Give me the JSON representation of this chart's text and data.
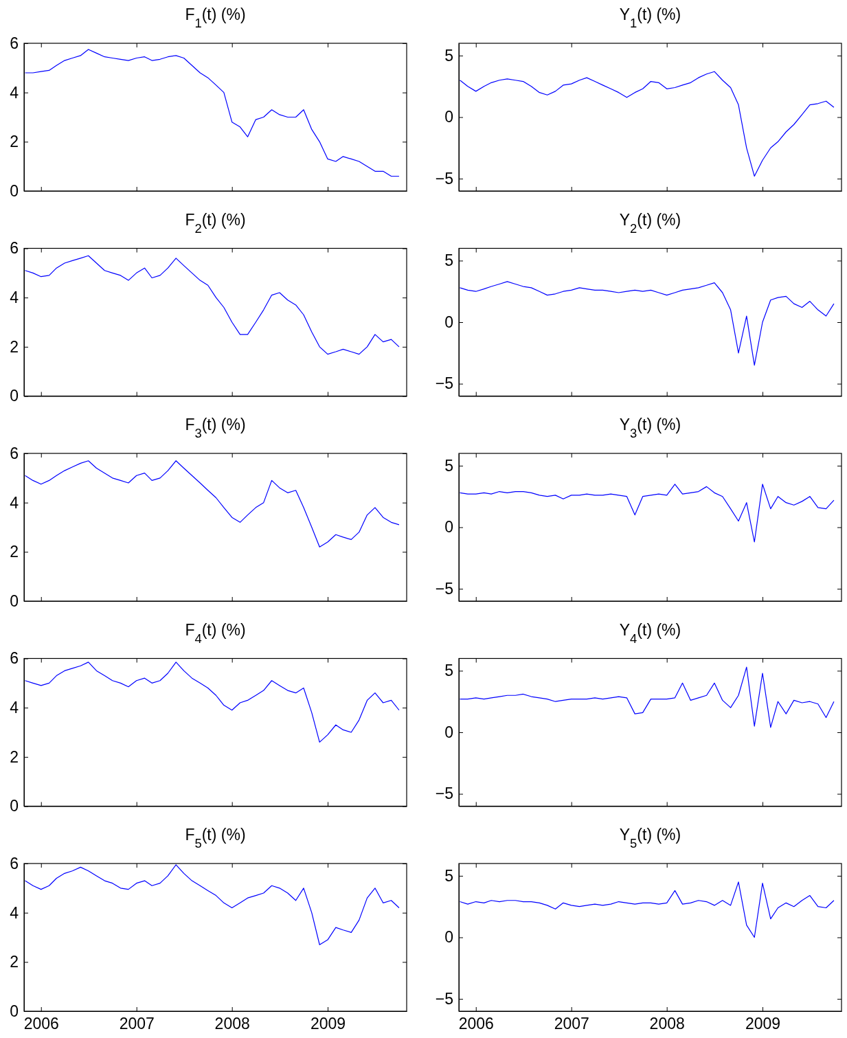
{
  "chart_data": [
    {
      "type": "line",
      "title": "F$_{1}$(t) (%)",
      "xlim": [
        "2005-10-28",
        "2009-10-30"
      ],
      "xticks": [
        "2006",
        "2007",
        "2008",
        "2009"
      ],
      "ylim": [
        0,
        6
      ],
      "yticks": [
        0,
        2,
        4,
        6
      ],
      "tick_labels": "y",
      "x": [
        "2005-11",
        "2005-12",
        "2006-01",
        "2006-02",
        "2006-03",
        "2006-04",
        "2006-05",
        "2006-06",
        "2006-07",
        "2006-08",
        "2006-09",
        "2006-10",
        "2006-11",
        "2006-12",
        "2007-01",
        "2007-02",
        "2007-03",
        "2007-04",
        "2007-05",
        "2007-06",
        "2007-07",
        "2007-08",
        "2007-09",
        "2007-10",
        "2007-11",
        "2007-12",
        "2008-01",
        "2008-02",
        "2008-03",
        "2008-04",
        "2008-05",
        "2008-06",
        "2008-07",
        "2008-08",
        "2008-09",
        "2008-10",
        "2008-11",
        "2008-12",
        "2009-01",
        "2009-02",
        "2009-03",
        "2009-04",
        "2009-05",
        "2009-06",
        "2009-07",
        "2009-08",
        "2009-09",
        "2009-10"
      ],
      "series": [
        {
          "color": "#0000ff",
          "values": [
            4.8,
            4.8,
            4.85,
            4.9,
            5.1,
            5.3,
            5.4,
            5.5,
            5.75,
            5.6,
            5.45,
            5.4,
            5.35,
            5.3,
            5.4,
            5.45,
            5.3,
            5.35,
            5.45,
            5.5,
            5.4,
            5.1,
            4.8,
            4.6,
            4.3,
            4.0,
            2.8,
            2.6,
            2.2,
            2.9,
            3.0,
            3.3,
            3.1,
            3.0,
            3.0,
            3.3,
            2.5,
            2.0,
            1.3,
            1.2,
            1.4,
            1.3,
            1.2,
            1.0,
            0.8,
            0.8,
            0.6,
            0.6
          ]
        }
      ]
    },
    {
      "type": "line",
      "title": "Y$_{1}$(t) (%)",
      "xlim": [
        "2005-10-28",
        "2009-10-30"
      ],
      "xticks": [
        "2006",
        "2007",
        "2008",
        "2009"
      ],
      "ylim": [
        -6,
        6
      ],
      "yticks": [
        -5,
        0,
        5
      ],
      "tick_labels": "y",
      "x": [
        "2005-11",
        "2005-12",
        "2006-01",
        "2006-02",
        "2006-03",
        "2006-04",
        "2006-05",
        "2006-06",
        "2006-07",
        "2006-08",
        "2006-09",
        "2006-10",
        "2006-11",
        "2006-12",
        "2007-01",
        "2007-02",
        "2007-03",
        "2007-04",
        "2007-05",
        "2007-06",
        "2007-07",
        "2007-08",
        "2007-09",
        "2007-10",
        "2007-11",
        "2007-12",
        "2008-01",
        "2008-02",
        "2008-03",
        "2008-04",
        "2008-05",
        "2008-06",
        "2008-07",
        "2008-08",
        "2008-09",
        "2008-10",
        "2008-11",
        "2008-12",
        "2009-01",
        "2009-02",
        "2009-03",
        "2009-04",
        "2009-05",
        "2009-06",
        "2009-07",
        "2009-08",
        "2009-09",
        "2009-10"
      ],
      "series": [
        {
          "color": "#0000ff",
          "values": [
            3.0,
            2.5,
            2.1,
            2.5,
            2.8,
            3.0,
            3.1,
            3.0,
            2.9,
            2.5,
            2.0,
            1.8,
            2.1,
            2.6,
            2.7,
            3.0,
            3.2,
            2.9,
            2.6,
            2.3,
            2.0,
            1.6,
            2.0,
            2.3,
            2.9,
            2.8,
            2.3,
            2.4,
            2.6,
            2.8,
            3.2,
            3.5,
            3.7,
            3.0,
            2.4,
            1.0,
            -2.5,
            -4.8,
            -3.5,
            -2.5,
            -2.0,
            -1.2,
            -0.6,
            0.2,
            1.0,
            1.1,
            1.3,
            0.8
          ]
        }
      ]
    },
    {
      "type": "line",
      "title": "F$_{2}$(t) (%)",
      "xlim": [
        "2005-10-28",
        "2009-10-30"
      ],
      "xticks": [
        "2006",
        "2007",
        "2008",
        "2009"
      ],
      "ylim": [
        0,
        6
      ],
      "yticks": [
        0,
        2,
        4,
        6
      ],
      "tick_labels": "y",
      "x": [
        "2005-11",
        "2005-12",
        "2006-01",
        "2006-02",
        "2006-03",
        "2006-04",
        "2006-05",
        "2006-06",
        "2006-07",
        "2006-08",
        "2006-09",
        "2006-10",
        "2006-11",
        "2006-12",
        "2007-01",
        "2007-02",
        "2007-03",
        "2007-04",
        "2007-05",
        "2007-06",
        "2007-07",
        "2007-08",
        "2007-09",
        "2007-10",
        "2007-11",
        "2007-12",
        "2008-01",
        "2008-02",
        "2008-03",
        "2008-04",
        "2008-05",
        "2008-06",
        "2008-07",
        "2008-08",
        "2008-09",
        "2008-10",
        "2008-11",
        "2008-12",
        "2009-01",
        "2009-02",
        "2009-03",
        "2009-04",
        "2009-05",
        "2009-06",
        "2009-07",
        "2009-08",
        "2009-09",
        "2009-10"
      ],
      "series": [
        {
          "color": "#0000ff",
          "values": [
            5.1,
            5.0,
            4.85,
            4.9,
            5.2,
            5.4,
            5.5,
            5.6,
            5.7,
            5.4,
            5.1,
            5.0,
            4.9,
            4.7,
            5.0,
            5.2,
            4.8,
            4.9,
            5.2,
            5.6,
            5.3,
            5.0,
            4.7,
            4.5,
            4.0,
            3.6,
            3.0,
            2.5,
            2.5,
            3.0,
            3.5,
            4.1,
            4.2,
            3.9,
            3.7,
            3.3,
            2.6,
            2.0,
            1.7,
            1.8,
            1.9,
            1.8,
            1.7,
            2.0,
            2.5,
            2.2,
            2.3,
            2.0
          ]
        }
      ]
    },
    {
      "type": "line",
      "title": "Y$_{2}$(t) (%)",
      "xlim": [
        "2005-10-28",
        "2009-10-30"
      ],
      "xticks": [
        "2006",
        "2007",
        "2008",
        "2009"
      ],
      "ylim": [
        -6,
        6
      ],
      "yticks": [
        -5,
        0,
        5
      ],
      "tick_labels": "y",
      "x": [
        "2005-11",
        "2005-12",
        "2006-01",
        "2006-02",
        "2006-03",
        "2006-04",
        "2006-05",
        "2006-06",
        "2006-07",
        "2006-08",
        "2006-09",
        "2006-10",
        "2006-11",
        "2006-12",
        "2007-01",
        "2007-02",
        "2007-03",
        "2007-04",
        "2007-05",
        "2007-06",
        "2007-07",
        "2007-08",
        "2007-09",
        "2007-10",
        "2007-11",
        "2007-12",
        "2008-01",
        "2008-02",
        "2008-03",
        "2008-04",
        "2008-05",
        "2008-06",
        "2008-07",
        "2008-08",
        "2008-09",
        "2008-10",
        "2008-11",
        "2008-12",
        "2009-01",
        "2009-02",
        "2009-03",
        "2009-04",
        "2009-05",
        "2009-06",
        "2009-07",
        "2009-08",
        "2009-09",
        "2009-10"
      ],
      "series": [
        {
          "color": "#0000ff",
          "values": [
            2.8,
            2.6,
            2.5,
            2.7,
            2.9,
            3.1,
            3.3,
            3.1,
            2.9,
            2.8,
            2.5,
            2.2,
            2.3,
            2.5,
            2.6,
            2.8,
            2.7,
            2.6,
            2.6,
            2.5,
            2.4,
            2.5,
            2.6,
            2.5,
            2.6,
            2.4,
            2.2,
            2.4,
            2.6,
            2.7,
            2.8,
            3.0,
            3.2,
            2.4,
            1.0,
            -2.5,
            0.5,
            -3.5,
            0.0,
            1.8,
            2.0,
            2.1,
            1.5,
            1.2,
            1.7,
            1.0,
            0.5,
            1.5
          ]
        }
      ]
    },
    {
      "type": "line",
      "title": "F$_{3}$(t) (%)",
      "xlim": [
        "2005-10-28",
        "2009-10-30"
      ],
      "xticks": [
        "2006",
        "2007",
        "2008",
        "2009"
      ],
      "ylim": [
        0,
        6
      ],
      "yticks": [
        0,
        2,
        4,
        6
      ],
      "tick_labels": "y",
      "x": [
        "2005-11",
        "2005-12",
        "2006-01",
        "2006-02",
        "2006-03",
        "2006-04",
        "2006-05",
        "2006-06",
        "2006-07",
        "2006-08",
        "2006-09",
        "2006-10",
        "2006-11",
        "2006-12",
        "2007-01",
        "2007-02",
        "2007-03",
        "2007-04",
        "2007-05",
        "2007-06",
        "2007-07",
        "2007-08",
        "2007-09",
        "2007-10",
        "2007-11",
        "2007-12",
        "2008-01",
        "2008-02",
        "2008-03",
        "2008-04",
        "2008-05",
        "2008-06",
        "2008-07",
        "2008-08",
        "2008-09",
        "2008-10",
        "2008-11",
        "2008-12",
        "2009-01",
        "2009-02",
        "2009-03",
        "2009-04",
        "2009-05",
        "2009-06",
        "2009-07",
        "2009-08",
        "2009-09",
        "2009-10"
      ],
      "series": [
        {
          "color": "#0000ff",
          "values": [
            5.1,
            4.9,
            4.75,
            4.9,
            5.1,
            5.3,
            5.45,
            5.6,
            5.7,
            5.4,
            5.2,
            5.0,
            4.9,
            4.8,
            5.1,
            5.2,
            4.9,
            5.0,
            5.3,
            5.7,
            5.4,
            5.1,
            4.8,
            4.5,
            4.2,
            3.8,
            3.4,
            3.2,
            3.5,
            3.8,
            4.0,
            4.9,
            4.6,
            4.4,
            4.5,
            3.8,
            3.0,
            2.2,
            2.4,
            2.7,
            2.6,
            2.5,
            2.8,
            3.5,
            3.8,
            3.4,
            3.2,
            3.1
          ]
        }
      ]
    },
    {
      "type": "line",
      "title": "Y$_{3}$(t) (%)",
      "xlim": [
        "2005-10-28",
        "2009-10-30"
      ],
      "xticks": [
        "2006",
        "2007",
        "2008",
        "2009"
      ],
      "ylim": [
        -6,
        6
      ],
      "yticks": [
        -5,
        0,
        5
      ],
      "tick_labels": "y",
      "x": [
        "2005-11",
        "2005-12",
        "2006-01",
        "2006-02",
        "2006-03",
        "2006-04",
        "2006-05",
        "2006-06",
        "2006-07",
        "2006-08",
        "2006-09",
        "2006-10",
        "2006-11",
        "2006-12",
        "2007-01",
        "2007-02",
        "2007-03",
        "2007-04",
        "2007-05",
        "2007-06",
        "2007-07",
        "2007-08",
        "2007-09",
        "2007-10",
        "2007-11",
        "2007-12",
        "2008-01",
        "2008-02",
        "2008-03",
        "2008-04",
        "2008-05",
        "2008-06",
        "2008-07",
        "2008-08",
        "2008-09",
        "2008-10",
        "2008-11",
        "2008-12",
        "2009-01",
        "2009-02",
        "2009-03",
        "2009-04",
        "2009-05",
        "2009-06",
        "2009-07",
        "2009-08",
        "2009-09",
        "2009-10"
      ],
      "series": [
        {
          "color": "#0000ff",
          "values": [
            2.8,
            2.7,
            2.7,
            2.8,
            2.7,
            2.9,
            2.8,
            2.9,
            2.9,
            2.8,
            2.6,
            2.5,
            2.6,
            2.3,
            2.6,
            2.6,
            2.7,
            2.6,
            2.6,
            2.7,
            2.6,
            2.5,
            1.0,
            2.5,
            2.6,
            2.7,
            2.6,
            3.5,
            2.7,
            2.8,
            2.9,
            3.3,
            2.8,
            2.5,
            1.5,
            0.5,
            2.0,
            -1.2,
            3.5,
            1.5,
            2.5,
            2.0,
            1.8,
            2.1,
            2.5,
            1.6,
            1.5,
            2.2
          ]
        }
      ]
    },
    {
      "type": "line",
      "title": "F$_{4}$(t) (%)",
      "xlim": [
        "2005-10-28",
        "2009-10-30"
      ],
      "xticks": [
        "2006",
        "2007",
        "2008",
        "2009"
      ],
      "ylim": [
        0,
        6
      ],
      "yticks": [
        0,
        2,
        4,
        6
      ],
      "tick_labels": "y",
      "x": [
        "2005-11",
        "2005-12",
        "2006-01",
        "2006-02",
        "2006-03",
        "2006-04",
        "2006-05",
        "2006-06",
        "2006-07",
        "2006-08",
        "2006-09",
        "2006-10",
        "2006-11",
        "2006-12",
        "2007-01",
        "2007-02",
        "2007-03",
        "2007-04",
        "2007-05",
        "2007-06",
        "2007-07",
        "2007-08",
        "2007-09",
        "2007-10",
        "2007-11",
        "2007-12",
        "2008-01",
        "2008-02",
        "2008-03",
        "2008-04",
        "2008-05",
        "2008-06",
        "2008-07",
        "2008-08",
        "2008-09",
        "2008-10",
        "2008-11",
        "2008-12",
        "2009-01",
        "2009-02",
        "2009-03",
        "2009-04",
        "2009-05",
        "2009-06",
        "2009-07",
        "2009-08",
        "2009-09",
        "2009-10"
      ],
      "series": [
        {
          "color": "#0000ff",
          "values": [
            5.1,
            5.0,
            4.9,
            5.0,
            5.3,
            5.5,
            5.6,
            5.7,
            5.85,
            5.5,
            5.3,
            5.1,
            5.0,
            4.85,
            5.1,
            5.2,
            5.0,
            5.1,
            5.4,
            5.85,
            5.5,
            5.2,
            5.0,
            4.8,
            4.5,
            4.1,
            3.9,
            4.2,
            4.3,
            4.5,
            4.7,
            5.1,
            4.9,
            4.7,
            4.6,
            4.8,
            3.8,
            2.6,
            2.9,
            3.3,
            3.1,
            3.0,
            3.5,
            4.3,
            4.6,
            4.2,
            4.3,
            3.9
          ]
        }
      ]
    },
    {
      "type": "line",
      "title": "Y$_{4}$(t) (%)",
      "xlim": [
        "2005-10-28",
        "2009-10-30"
      ],
      "xticks": [
        "2006",
        "2007",
        "2008",
        "2009"
      ],
      "ylim": [
        -6,
        6
      ],
      "yticks": [
        -5,
        0,
        5
      ],
      "tick_labels": "y",
      "x": [
        "2005-11",
        "2005-12",
        "2006-01",
        "2006-02",
        "2006-03",
        "2006-04",
        "2006-05",
        "2006-06",
        "2006-07",
        "2006-08",
        "2006-09",
        "2006-10",
        "2006-11",
        "2006-12",
        "2007-01",
        "2007-02",
        "2007-03",
        "2007-04",
        "2007-05",
        "2007-06",
        "2007-07",
        "2007-08",
        "2007-09",
        "2007-10",
        "2007-11",
        "2007-12",
        "2008-01",
        "2008-02",
        "2008-03",
        "2008-04",
        "2008-05",
        "2008-06",
        "2008-07",
        "2008-08",
        "2008-09",
        "2008-10",
        "2008-11",
        "2008-12",
        "2009-01",
        "2009-02",
        "2009-03",
        "2009-04",
        "2009-05",
        "2009-06",
        "2009-07",
        "2009-08",
        "2009-09",
        "2009-10"
      ],
      "series": [
        {
          "color": "#0000ff",
          "values": [
            2.7,
            2.7,
            2.8,
            2.7,
            2.8,
            2.9,
            3.0,
            3.0,
            3.1,
            2.9,
            2.8,
            2.7,
            2.5,
            2.6,
            2.7,
            2.7,
            2.7,
            2.8,
            2.7,
            2.8,
            2.9,
            2.8,
            1.5,
            1.6,
            2.7,
            2.7,
            2.7,
            2.8,
            4.0,
            2.6,
            2.8,
            3.0,
            4.0,
            2.6,
            2.0,
            3.0,
            5.3,
            0.5,
            4.8,
            0.4,
            2.5,
            1.5,
            2.6,
            2.4,
            2.5,
            2.3,
            1.2,
            2.5
          ]
        }
      ]
    },
    {
      "type": "line",
      "title": "F$_{5}$(t) (%)",
      "xlim": [
        "2005-10-28",
        "2009-10-30"
      ],
      "xticks": [
        "2006",
        "2007",
        "2008",
        "2009"
      ],
      "ylim": [
        0,
        6
      ],
      "yticks": [
        0,
        2,
        4,
        6
      ],
      "x": [
        "2005-11",
        "2005-12",
        "2006-01",
        "2006-02",
        "2006-03",
        "2006-04",
        "2006-05",
        "2006-06",
        "2006-07",
        "2006-08",
        "2006-09",
        "2006-10",
        "2006-11",
        "2006-12",
        "2007-01",
        "2007-02",
        "2007-03",
        "2007-04",
        "2007-05",
        "2007-06",
        "2007-07",
        "2007-08",
        "2007-09",
        "2007-10",
        "2007-11",
        "2007-12",
        "2008-01",
        "2008-02",
        "2008-03",
        "2008-04",
        "2008-05",
        "2008-06",
        "2008-07",
        "2008-08",
        "2008-09",
        "2008-10",
        "2008-11",
        "2008-12",
        "2009-01",
        "2009-02",
        "2009-03",
        "2009-04",
        "2009-05",
        "2009-06",
        "2009-07",
        "2009-08",
        "2009-09",
        "2009-10"
      ],
      "series": [
        {
          "color": "#0000ff",
          "values": [
            5.3,
            5.1,
            4.95,
            5.1,
            5.4,
            5.6,
            5.7,
            5.85,
            5.7,
            5.5,
            5.3,
            5.2,
            5.0,
            4.95,
            5.2,
            5.3,
            5.1,
            5.2,
            5.5,
            5.95,
            5.6,
            5.3,
            5.1,
            4.9,
            4.7,
            4.4,
            4.2,
            4.4,
            4.6,
            4.7,
            4.8,
            5.1,
            5.0,
            4.8,
            4.5,
            5.0,
            4.0,
            2.7,
            2.9,
            3.4,
            3.3,
            3.2,
            3.7,
            4.6,
            5.0,
            4.4,
            4.5,
            4.2
          ]
        }
      ]
    },
    {
      "type": "line",
      "title": "Y$_{5}$(t) (%)",
      "xlim": [
        "2005-10-28",
        "2009-10-30"
      ],
      "xticks": [
        "2006",
        "2007",
        "2008",
        "2009"
      ],
      "ylim": [
        -6,
        6
      ],
      "yticks": [
        -5,
        0,
        5
      ],
      "x": [
        "2005-11",
        "2005-12",
        "2006-01",
        "2006-02",
        "2006-03",
        "2006-04",
        "2006-05",
        "2006-06",
        "2006-07",
        "2006-08",
        "2006-09",
        "2006-10",
        "2006-11",
        "2006-12",
        "2007-01",
        "2007-02",
        "2007-03",
        "2007-04",
        "2007-05",
        "2007-06",
        "2007-07",
        "2007-08",
        "2007-09",
        "2007-10",
        "2007-11",
        "2007-12",
        "2008-01",
        "2008-02",
        "2008-03",
        "2008-04",
        "2008-05",
        "2008-06",
        "2008-07",
        "2008-08",
        "2008-09",
        "2008-10",
        "2008-11",
        "2008-12",
        "2009-01",
        "2009-02",
        "2009-03",
        "2009-04",
        "2009-05",
        "2009-06",
        "2009-07",
        "2009-08",
        "2009-09",
        "2009-10"
      ],
      "series": [
        {
          "color": "#0000ff",
          "values": [
            2.9,
            2.7,
            2.9,
            2.8,
            3.0,
            2.9,
            3.0,
            3.0,
            2.9,
            2.9,
            2.8,
            2.6,
            2.3,
            2.8,
            2.6,
            2.5,
            2.6,
            2.7,
            2.6,
            2.7,
            2.9,
            2.8,
            2.7,
            2.8,
            2.8,
            2.7,
            2.8,
            3.8,
            2.7,
            2.8,
            3.0,
            2.9,
            2.6,
            3.0,
            2.6,
            4.5,
            1.0,
            0.0,
            4.4,
            1.5,
            2.4,
            2.8,
            2.5,
            3.0,
            3.4,
            2.5,
            2.4,
            3.0
          ]
        }
      ]
    }
  ]
}
